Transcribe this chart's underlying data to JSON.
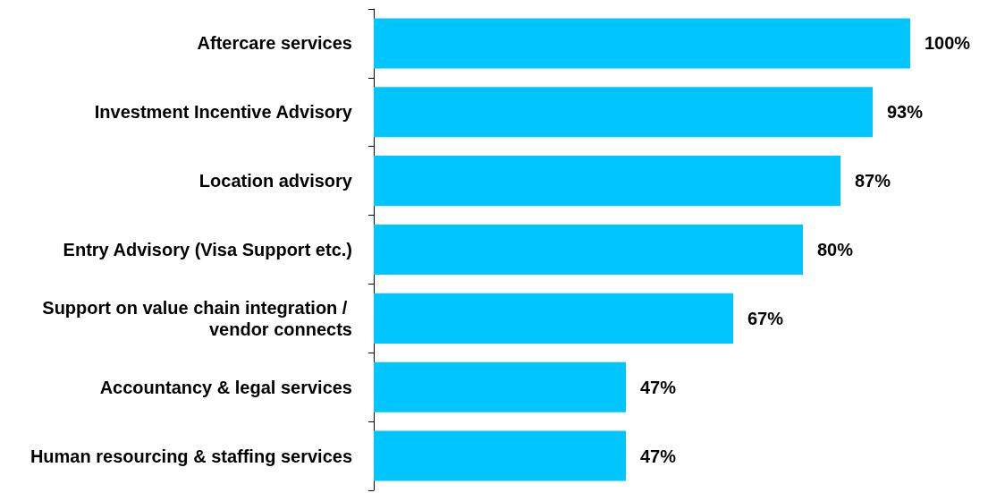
{
  "chart_data": {
    "type": "bar",
    "orientation": "horizontal",
    "categories": [
      "Aftercare services",
      "Investment Incentive Advisory",
      "Location advisory",
      "Entry Advisory (Visa Support etc.)",
      "Support on value chain integration / vendor connects",
      "Accountancy & legal services",
      "Human resourcing & staffing services"
    ],
    "values": [
      100,
      93,
      87,
      80,
      67,
      47,
      47
    ],
    "value_labels": [
      "100%",
      "93%",
      "87%",
      "80%",
      "67%",
      "47%",
      "47%"
    ],
    "color": "#00c5ff",
    "grid": false
  }
}
